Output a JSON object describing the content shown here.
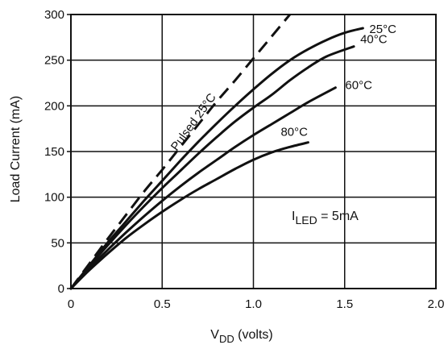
{
  "chart_data": {
    "type": "line",
    "title": "",
    "xlabel": "V",
    "xlabel_sub": "DD",
    "xlabel_suffix": " (volts)",
    "ylabel": "Load Current (mA)",
    "xlim": [
      0,
      2.0
    ],
    "ylim": [
      0,
      300
    ],
    "x_ticks": [
      "0",
      "0.5",
      "1.0",
      "1.5",
      "2.0"
    ],
    "y_ticks": [
      "0",
      "50",
      "100",
      "150",
      "200",
      "250",
      "300"
    ],
    "grid": true,
    "annotation": {
      "prefix": "I",
      "sub": "LED",
      "suffix": " = 5mA"
    },
    "series": [
      {
        "name": "Pulsed 25°C",
        "style": "dashed",
        "x": [
          0,
          0.1,
          0.2,
          0.3,
          0.4,
          0.5,
          0.6,
          0.7,
          0.8,
          0.9,
          1.0,
          1.1,
          1.2
        ],
        "y": [
          0,
          27,
          54,
          80,
          106,
          130,
          155,
          180,
          205,
          228,
          252,
          276,
          300
        ]
      },
      {
        "name": "25°C",
        "style": "solid",
        "x": [
          0,
          0.1,
          0.2,
          0.3,
          0.4,
          0.5,
          0.6,
          0.7,
          0.8,
          0.9,
          1.0,
          1.1,
          1.2,
          1.3,
          1.4,
          1.5,
          1.6
        ],
        "y": [
          0,
          25,
          50,
          73,
          96,
          118,
          140,
          161,
          181,
          200,
          218,
          235,
          250,
          262,
          272,
          280,
          285
        ]
      },
      {
        "name": "40°C",
        "style": "solid",
        "x": [
          0,
          0.1,
          0.2,
          0.3,
          0.4,
          0.5,
          0.6,
          0.7,
          0.8,
          0.9,
          1.0,
          1.1,
          1.2,
          1.3,
          1.4,
          1.55
        ],
        "y": [
          0,
          24,
          47,
          69,
          90,
          110,
          129,
          148,
          166,
          183,
          198,
          212,
          228,
          242,
          254,
          265
        ]
      },
      {
        "name": "60°C",
        "style": "solid",
        "x": [
          0,
          0.1,
          0.2,
          0.3,
          0.4,
          0.5,
          0.6,
          0.7,
          0.8,
          0.9,
          1.0,
          1.1,
          1.2,
          1.3,
          1.45
        ],
        "y": [
          0,
          22,
          42,
          61,
          79,
          96,
          112,
          127,
          141,
          155,
          168,
          180,
          192,
          204,
          220
        ]
      },
      {
        "name": "80°C",
        "style": "solid",
        "x": [
          0,
          0.1,
          0.2,
          0.3,
          0.4,
          0.5,
          0.6,
          0.7,
          0.8,
          0.9,
          1.0,
          1.1,
          1.2,
          1.3
        ],
        "y": [
          0,
          20,
          38,
          55,
          70,
          84,
          97,
          109,
          120,
          131,
          141,
          149,
          155,
          160
        ]
      }
    ]
  }
}
